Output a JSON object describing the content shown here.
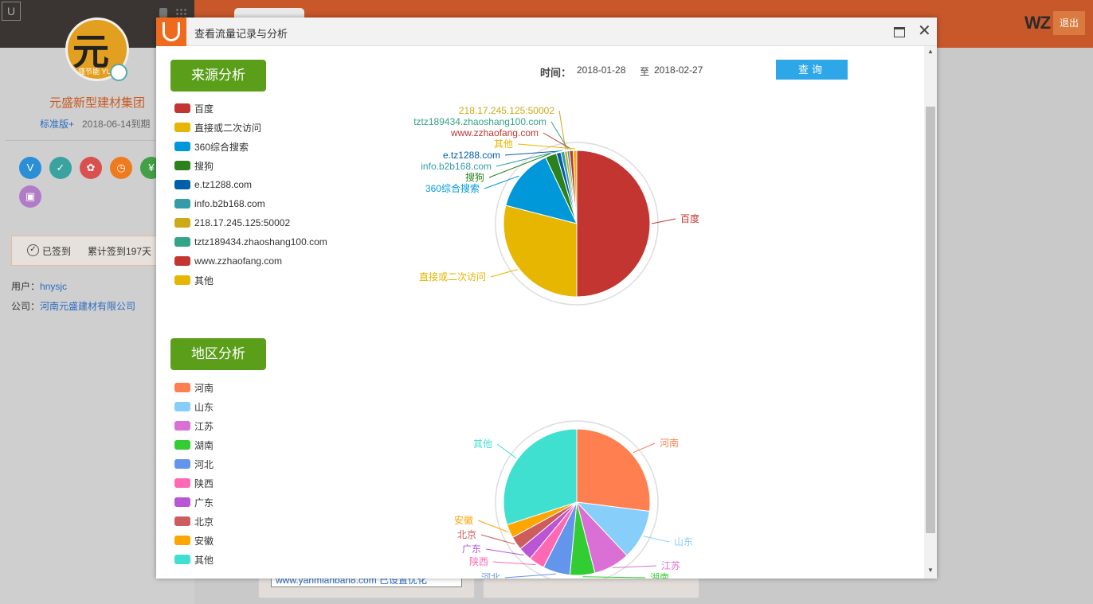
{
  "background": {
    "company_name": "元盛新型建材集团",
    "edition": "标准版+",
    "expire": "2018-06-14到期",
    "signed": "已签到",
    "signed_count": "累计签到197天",
    "user_label": "用户：",
    "user_value": "hnysjc",
    "company_label": "公司：",
    "company_value": "河南元盛建材有限公司",
    "site_select": "www.yanmianban8.com 已设置优化",
    "brand": "WZ",
    "brand_badge": "退出",
    "avatar_glyph": "元",
    "avatar_caption": "元盛节能 YUAN SHE",
    "icons": [
      {
        "name": "v-icon",
        "glyph": "V",
        "color": "#2a8fd6"
      },
      {
        "name": "shield-icon",
        "glyph": "✓",
        "color": "#3aa3a0"
      },
      {
        "name": "award-icon",
        "glyph": "✿",
        "color": "#d9504f"
      },
      {
        "name": "clock-icon",
        "glyph": "◷",
        "color": "#f07a1e"
      },
      {
        "name": "yen-icon",
        "glyph": "¥",
        "color": "#43a047"
      },
      {
        "name": "image-icon",
        "glyph": "▣",
        "color": "#b07cc6"
      }
    ]
  },
  "dialog": {
    "title": "查看流量记录与分析",
    "time_label": "时间：",
    "date_from": "2018-01-28",
    "date_sep": "至",
    "date_to": "2018-02-27",
    "query_label": "查询",
    "source_section": "来源分析",
    "region_section": "地区分析"
  },
  "chart_data": [
    {
      "type": "pie",
      "title": "来源分析",
      "legend_placement": "left",
      "categories": [
        "百度",
        "直接或二次访问",
        "360综合搜索",
        "搜狗",
        "e.tz1288.com",
        "info.b2b168.com",
        "218.17.245.125:50002",
        "tztz189434.zhaoshang100.com",
        "www.zzhaofang.com",
        "其他"
      ],
      "values": [
        50.0,
        29.0,
        14.0,
        2.5,
        1.0,
        0.8,
        0.6,
        0.5,
        0.8,
        0.8
      ],
      "colors": [
        "#c23531",
        "#e6b600",
        "#0098d9",
        "#2b821d",
        "#005eaa",
        "#339ca8",
        "#cda819",
        "#32a487",
        "#c23531",
        "#e6b600"
      ]
    },
    {
      "type": "pie",
      "title": "地区分析",
      "legend_placement": "left",
      "categories": [
        "河南",
        "山东",
        "江苏",
        "湖南",
        "河北",
        "陕西",
        "广东",
        "北京",
        "安徽",
        "其他"
      ],
      "values": [
        27.0,
        11.0,
        8.0,
        5.5,
        6.0,
        3.5,
        3.0,
        3.0,
        3.0,
        30.0
      ],
      "colors": [
        "#ff7f50",
        "#87cefa",
        "#da70d6",
        "#32cd32",
        "#6495ed",
        "#ff69b4",
        "#ba55d3",
        "#cd5c5c",
        "#ffa500",
        "#40e0d0"
      ]
    }
  ]
}
